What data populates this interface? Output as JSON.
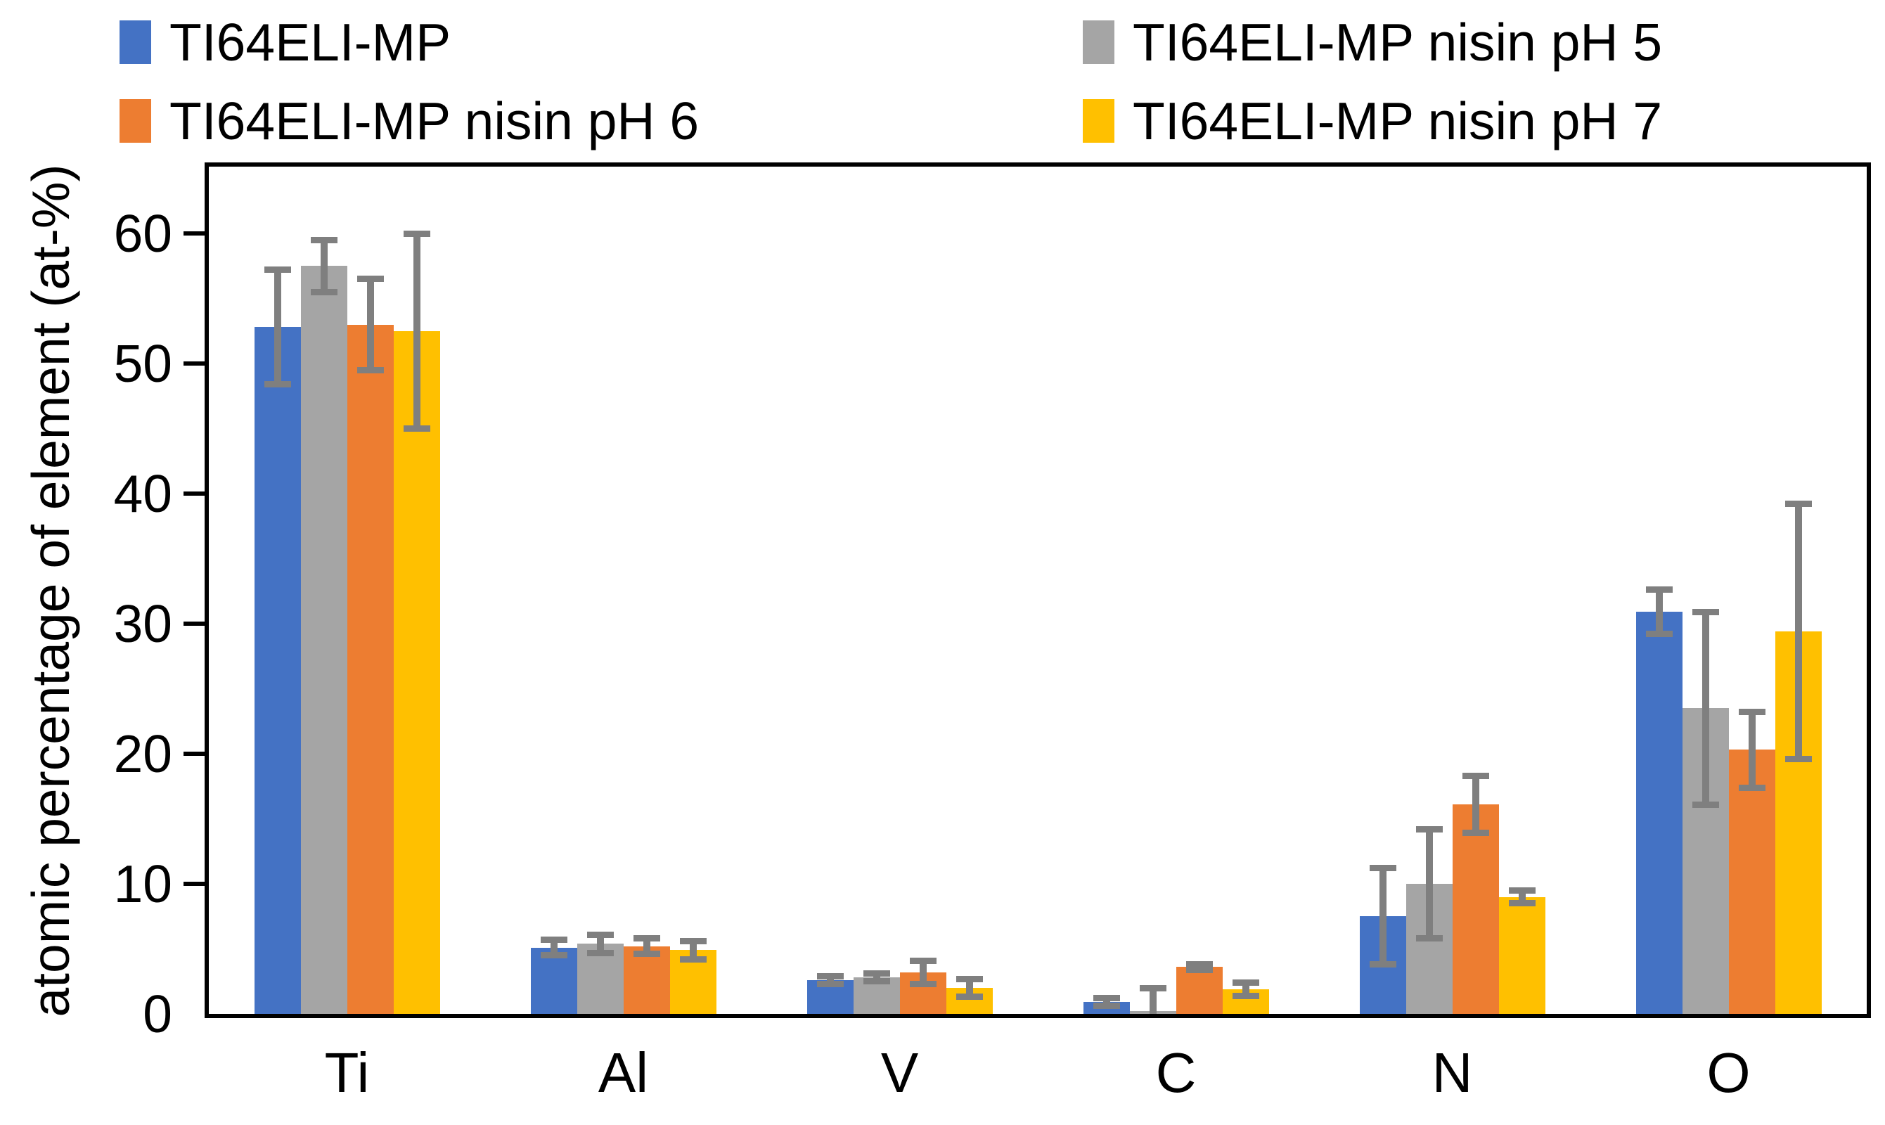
{
  "chart_data": {
    "type": "bar",
    "title": "",
    "xlabel": "",
    "ylabel": "atomic percentage of element (at-%)",
    "categories": [
      "Ti",
      "Al",
      "V",
      "C",
      "N",
      "O"
    ],
    "series": [
      {
        "name": "TI64ELI-MP",
        "color": "#4472C4",
        "values": [
          52.8,
          5.1,
          2.6,
          0.9,
          7.5,
          30.9
        ],
        "errors": [
          4.4,
          0.6,
          0.3,
          0.3,
          3.7,
          1.7
        ]
      },
      {
        "name": "TI64ELI-MP nisin pH 5",
        "color": "#A5A5A5",
        "values": [
          57.5,
          5.4,
          2.8,
          0.2,
          10.0,
          23.5
        ],
        "errors": [
          2.0,
          0.7,
          0.3,
          1.8,
          4.2,
          7.4
        ]
      },
      {
        "name": "TI64ELI-MP nisin pH 6",
        "color": "#ED7D31",
        "values": [
          53.0,
          5.2,
          3.2,
          3.6,
          16.1,
          20.3
        ],
        "errors": [
          3.5,
          0.6,
          0.9,
          0.2,
          2.2,
          2.9
        ]
      },
      {
        "name": "TI64ELI-MP nisin pH 7",
        "color": "#FFC000",
        "values": [
          52.5,
          4.9,
          2.0,
          1.9,
          9.0,
          29.4
        ],
        "errors": [
          7.5,
          0.7,
          0.7,
          0.5,
          0.5,
          9.8
        ]
      }
    ],
    "yticks": [
      0,
      10,
      20,
      30,
      40,
      50,
      60
    ],
    "ylim": [
      0,
      65.1
    ],
    "grid": false,
    "legend_position": "top",
    "error_bar_color": "#7F7F7F",
    "axis_color": "#000000",
    "background_color": "#FFFFFF"
  }
}
